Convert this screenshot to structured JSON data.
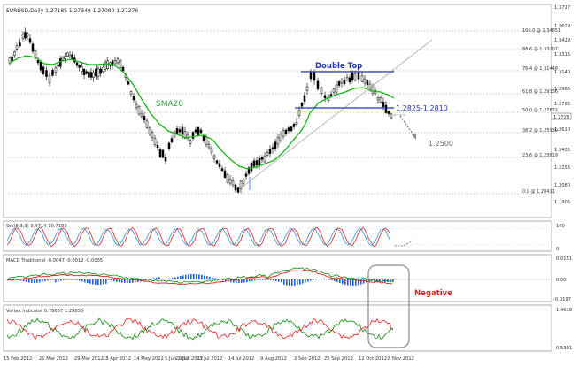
{
  "chart": {
    "symbol_line": "EURUSD,Daily  1.27185 1.27349 1.27080 1.27276",
    "current_price_tag": "1.2728"
  },
  "price_axis": [
    "1.3717",
    "1.3629",
    "1.3429",
    "1.3315",
    "1.3140",
    "1.2965",
    "1.2785",
    "1.2610",
    "1.2435",
    "1.2255",
    "1.2080",
    "1.1905"
  ],
  "fibonacci_levels": [
    {
      "label": "100.0 @ 1.34851"
    },
    {
      "label": "88.6 @ 1.33207"
    },
    {
      "label": "76.4 @ 1.31448"
    },
    {
      "label": "61.8 @ 1.29336"
    },
    {
      "label": "50.0 @ 1.27632"
    },
    {
      "label": "38.2 @ 1.25930"
    },
    {
      "label": "23.6 @ 1.23819"
    },
    {
      "label": "0.0 @ 1.20411"
    }
  ],
  "annotations": {
    "double_top": "Double Top",
    "range": "1.2825-1.2810",
    "target": "1.2500",
    "sma": "SMA20",
    "negative": "Negative"
  },
  "stoch": {
    "header": "Sto(8,3,3) 9.4714 10.7183",
    "axis": [
      "100",
      "0"
    ]
  },
  "macd": {
    "header": "MACD Traditional -0.0047 -0.0012 -0.0035",
    "axis": [
      "0.0151",
      "0.00",
      "-0.0197"
    ]
  },
  "vortex": {
    "header": "Vortex Indicator 0.78657 1.29855",
    "axis": [
      "1.4618",
      "0.5391"
    ]
  },
  "time_axis": [
    "15 Feb 2012",
    "21 Mar 2012",
    "29 Mar 2012",
    "18 Apr 2012",
    "14 May 2012",
    "5 Jun 2012",
    "21 Jun 2012",
    "23 Jul 2012",
    "14 Jul 2012",
    "9 Aug 2012",
    "3 Sep 2012",
    "25 Sep 2012",
    "12 Oct 2012",
    "8 Nov 2012"
  ],
  "colors": {
    "candle": "#000000",
    "sma": "#15b515",
    "fib_line": "#888888",
    "stoch_k": "#e02020",
    "stoch_d": "#2f8fdc",
    "macd_hist": "#1e5ee0",
    "macd_signal": "#e02020",
    "vortex_plus": "#0a8a0a",
    "vortex_minus": "#e02020",
    "annotation_blue": "#1f35b4"
  }
}
